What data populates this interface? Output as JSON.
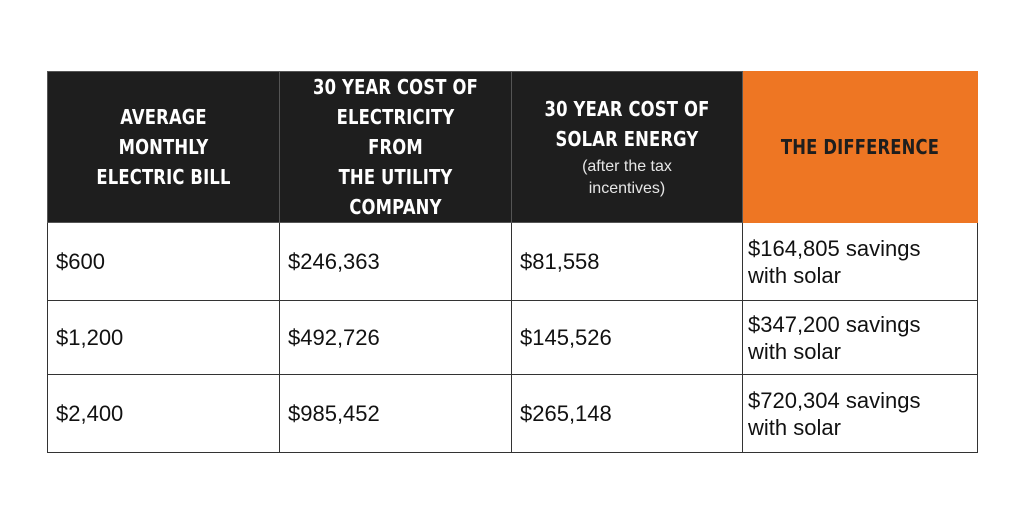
{
  "table": {
    "headers": [
      {
        "title": "AVERAGE MONTHLY\nELECTRIC BILL",
        "note": ""
      },
      {
        "title": "30 YEAR COST OF\nELECTRICITY FROM\nTHE UTILITY\nCOMPANY",
        "note": ""
      },
      {
        "title": "30 YEAR COST OF\nSOLAR ENERGY",
        "note": "(after the tax\nincentives)"
      },
      {
        "title": "THE DIFFERENCE",
        "note": ""
      }
    ],
    "rows": [
      [
        "$600",
        "$246,363",
        "$81,558",
        "$164,805 savings\nwith solar"
      ],
      [
        "$1,200",
        "$492,726",
        "$145,526",
        "$347,200 savings\nwith solar"
      ],
      [
        "$2,400",
        "$985,452",
        "$265,148",
        "$720,304 savings\nwith solar"
      ]
    ]
  },
  "colors": {
    "header_dark": "#1e1e1e",
    "header_accent": "#ee7623",
    "border": "#333333"
  },
  "chart_data": {
    "type": "table",
    "columns": [
      "AVERAGE MONTHLY ELECTRIC BILL",
      "30 YEAR COST OF ELECTRICITY FROM THE UTILITY COMPANY",
      "30 YEAR COST OF SOLAR ENERGY (after the tax incentives)",
      "THE DIFFERENCE"
    ],
    "rows": [
      [
        "$600",
        "$246,363",
        "$81,558",
        "$164,805 savings with solar"
      ],
      [
        "$1,200",
        "$492,726",
        "$145,526",
        "$347,200 savings with solar"
      ],
      [
        "$2,400",
        "$985,452",
        "$265,148",
        "$720,304 savings with solar"
      ]
    ]
  }
}
